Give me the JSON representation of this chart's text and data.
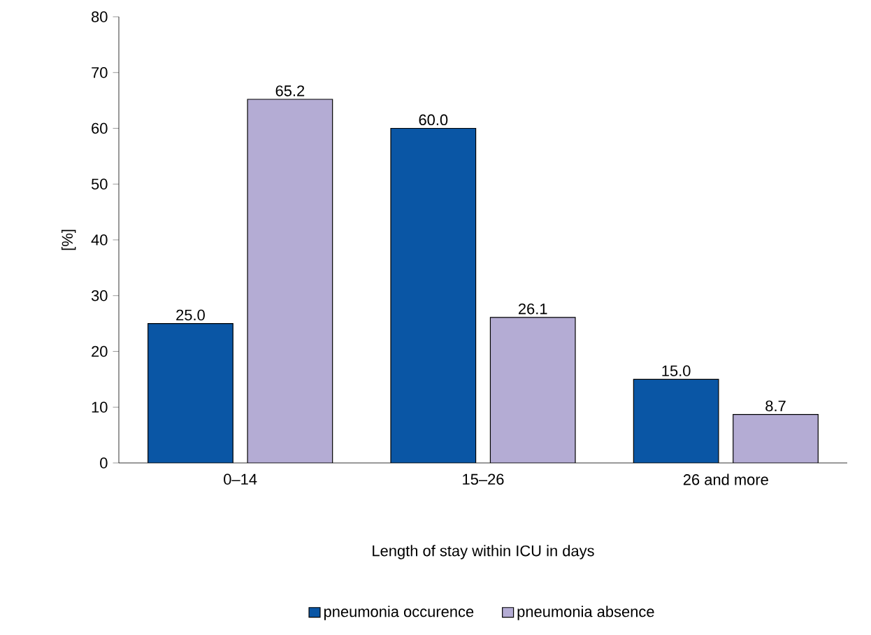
{
  "chart_data": {
    "type": "bar",
    "xlabel": "Length of stay within ICU in days",
    "ylabel": "[%]",
    "categories": [
      "0–14",
      "15–26",
      "26 and more"
    ],
    "series": [
      {
        "name": "pneumonia occurence",
        "color": "#0a56a5",
        "values": [
          25.0,
          60.0,
          15.0
        ],
        "value_labels": [
          "25.0",
          "60.0",
          "15.0"
        ]
      },
      {
        "name": "pneumonia absence",
        "color": "#b4acd4",
        "values": [
          65.2,
          26.1,
          8.7
        ],
        "value_labels": [
          "65.2",
          "26.1",
          "8.7"
        ]
      }
    ],
    "ylim": [
      0,
      80
    ],
    "yticks": [
      0,
      10,
      20,
      30,
      40,
      50,
      60,
      70,
      80
    ],
    "grid": false,
    "legend": "bottom"
  }
}
